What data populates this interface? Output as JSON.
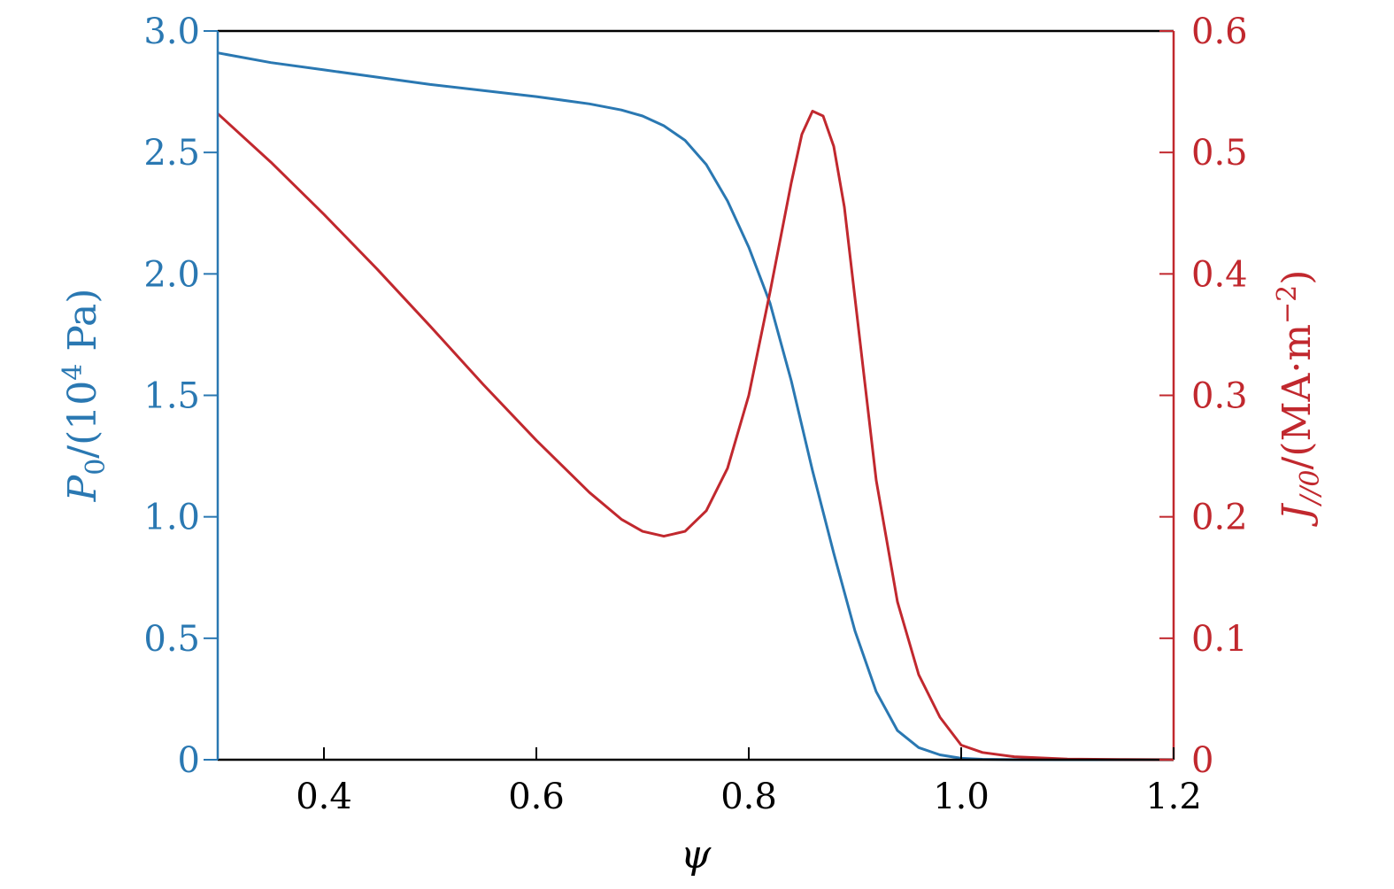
{
  "chart_data": {
    "type": "line",
    "xlabel": "ψ",
    "xlim": [
      0.3,
      1.2
    ],
    "x_ticks": [
      "0.4",
      "0.6",
      "0.8",
      "1.0",
      "1.2"
    ],
    "x_tick_values": [
      0.4,
      0.6,
      0.8,
      1.0,
      1.2
    ],
    "left_axis": {
      "label_main": "P",
      "label_sub": "0",
      "label_unit_pre": "/(10",
      "label_unit_sup": "4",
      "label_unit_post": " Pa)",
      "ylim": [
        0,
        3.0
      ],
      "ticks": [
        "0",
        "0.5",
        "1.0",
        "1.5",
        "2.0",
        "2.5",
        "3.0"
      ],
      "tick_values": [
        0,
        0.5,
        1.0,
        1.5,
        2.0,
        2.5,
        3.0
      ],
      "color": "#2a78b2"
    },
    "right_axis": {
      "label_main": "J",
      "label_sub": "//0",
      "label_unit_pre": "/(MA·m",
      "label_unit_sup": "−2",
      "label_unit_post": ")",
      "ylim": [
        0,
        0.6
      ],
      "ticks": [
        "0",
        "0.1",
        "0.2",
        "0.3",
        "0.4",
        "0.5",
        "0.6"
      ],
      "tick_values": [
        0,
        0.1,
        0.2,
        0.3,
        0.4,
        0.5,
        0.6
      ],
      "color": "#c1282e"
    },
    "series": [
      {
        "axis": "left",
        "color": "#2a78b2",
        "x": [
          0.3,
          0.35,
          0.4,
          0.45,
          0.5,
          0.55,
          0.6,
          0.65,
          0.68,
          0.7,
          0.72,
          0.74,
          0.76,
          0.78,
          0.8,
          0.82,
          0.84,
          0.86,
          0.88,
          0.9,
          0.92,
          0.94,
          0.96,
          0.98,
          1.0,
          1.02,
          1.05,
          1.1,
          1.15,
          1.2
        ],
        "y": [
          2.91,
          2.87,
          2.84,
          2.81,
          2.78,
          2.755,
          2.73,
          2.7,
          2.675,
          2.65,
          2.61,
          2.55,
          2.45,
          2.3,
          2.11,
          1.88,
          1.56,
          1.19,
          0.85,
          0.53,
          0.28,
          0.12,
          0.05,
          0.02,
          0.006,
          0.002,
          0.0005,
          0,
          0,
          0
        ]
      },
      {
        "axis": "right",
        "color": "#c1282e",
        "x": [
          0.3,
          0.35,
          0.4,
          0.45,
          0.5,
          0.55,
          0.6,
          0.65,
          0.68,
          0.7,
          0.72,
          0.74,
          0.76,
          0.78,
          0.8,
          0.82,
          0.84,
          0.85,
          0.86,
          0.87,
          0.88,
          0.89,
          0.9,
          0.92,
          0.94,
          0.96,
          0.98,
          1.0,
          1.02,
          1.05,
          1.1,
          1.15,
          1.2
        ],
        "y": [
          0.532,
          0.492,
          0.449,
          0.404,
          0.357,
          0.309,
          0.263,
          0.22,
          0.198,
          0.188,
          0.184,
          0.188,
          0.205,
          0.24,
          0.3,
          0.385,
          0.475,
          0.515,
          0.534,
          0.53,
          0.505,
          0.455,
          0.38,
          0.23,
          0.13,
          0.07,
          0.035,
          0.012,
          0.006,
          0.0025,
          0.0005,
          0.0002,
          0
        ]
      }
    ]
  }
}
